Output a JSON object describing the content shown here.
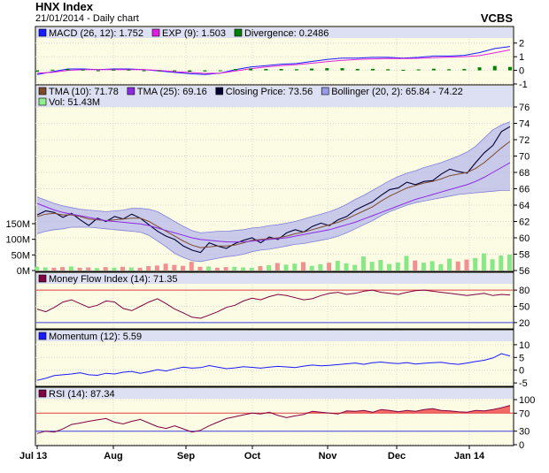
{
  "header": {
    "title": "HNX Index",
    "subtitle": "21/01/2014 - Daily chart",
    "source": "VCBS"
  },
  "chart_data": {
    "type": "line",
    "x_ticks": [
      "Jul 13",
      "Aug",
      "Sep",
      "Oct",
      "Nov",
      "Dec",
      "Jan 14"
    ],
    "panels": [
      {
        "id": "macd",
        "legend": [
          {
            "label": "MACD (26, 12): 1.752",
            "color": "#1a1aff"
          },
          {
            "label": "EXP (9): 1.503",
            "color": "#e020e0"
          },
          {
            "label": "Divergence: 0.2486",
            "color": "#008000"
          }
        ],
        "ylim": [
          -1,
          2.5
        ],
        "y_ticks": [
          "2",
          "1",
          "0",
          "-1"
        ],
        "series": [
          {
            "name": "MACD",
            "color": "#1a1aff",
            "values": [
              -0.3,
              -0.1,
              0.1,
              0.1,
              0.05,
              0.1,
              0.1,
              0.05,
              -0.05,
              -0.15,
              -0.25,
              -0.3,
              -0.2,
              0.05,
              0.25,
              0.35,
              0.45,
              0.5,
              0.65,
              0.8,
              0.9,
              0.9,
              0.95,
              0.95,
              0.9,
              0.95,
              1.05,
              1.05,
              1.1,
              1.3,
              1.6,
              1.75
            ]
          },
          {
            "name": "EXP",
            "color": "#e020e0",
            "values": [
              -0.2,
              -0.15,
              0.0,
              0.05,
              0.05,
              0.05,
              0.05,
              0.05,
              0.0,
              -0.1,
              -0.15,
              -0.22,
              -0.2,
              -0.05,
              0.12,
              0.25,
              0.35,
              0.42,
              0.52,
              0.64,
              0.74,
              0.8,
              0.84,
              0.87,
              0.86,
              0.88,
              0.93,
              0.97,
              1.0,
              1.08,
              1.28,
              1.5
            ]
          },
          {
            "name": "Divergence",
            "color": "#008000",
            "kind": "bars",
            "values": [
              -0.1,
              0.05,
              0.1,
              0.05,
              0.0,
              0.05,
              0.05,
              0.0,
              -0.05,
              -0.05,
              -0.1,
              -0.08,
              0.0,
              0.1,
              0.13,
              0.1,
              0.1,
              0.08,
              0.13,
              0.16,
              0.16,
              0.1,
              0.11,
              0.08,
              0.04,
              0.07,
              0.12,
              0.08,
              0.1,
              0.22,
              0.32,
              0.25
            ]
          }
        ]
      },
      {
        "id": "price",
        "legend": [
          {
            "label": "TMA (10): 71.78",
            "color": "#7b4b2a"
          },
          {
            "label": "TMA (25): 69.16",
            "color": "#8a2be2"
          },
          {
            "label": "Closing Price: 73.56",
            "color": "#000033"
          },
          {
            "label": "Bollinger (20, 2): 65.84 - 74.22",
            "color": "#9a9ae8"
          },
          {
            "label": "Vol: 51.43M",
            "color": "#90ee90"
          }
        ],
        "ylim": [
          56,
          76
        ],
        "y_ticks": [
          "76",
          "74",
          "72",
          "70",
          "68",
          "66",
          "64",
          "62",
          "60",
          "58",
          "56"
        ],
        "volume_ticks": [
          "150M",
          "100M",
          "50M",
          "0M"
        ],
        "volume_max": 150,
        "series": [
          {
            "name": "Closing Price",
            "color": "#000033",
            "values": [
              62.8,
              63.3,
              63.1,
              62.5,
              63.0,
              62.2,
              61.5,
              62.4,
              62.0,
              62.6,
              62.3,
              62.9,
              62.4,
              61.6,
              60.8,
              60.2,
              59.8,
              59.0,
              58.5,
              58.2,
              59.4,
              59.0,
              58.7,
              59.3,
              59.7,
              60.0,
              59.4,
              60.1,
              59.8,
              60.6,
              61.0,
              60.7,
              61.4,
              61.8,
              61.5,
              62.2,
              62.6,
              63.4,
              63.9,
              64.4,
              65.2,
              65.9,
              66.1,
              66.8,
              66.5,
              66.9,
              67.0,
              67.8,
              68.4,
              68.1,
              67.9,
              69.2,
              70.4,
              71.3,
              73.0,
              73.6
            ]
          },
          {
            "name": "TMA (10)",
            "color": "#7b4b2a",
            "values": [
              62.6,
              62.9,
              63.0,
              62.8,
              62.8,
              62.6,
              62.3,
              62.2,
              62.1,
              62.2,
              62.3,
              62.4,
              62.4,
              62.0,
              61.4,
              60.8,
              60.2,
              59.6,
              59.1,
              58.8,
              58.9,
              59.0,
              59.0,
              59.1,
              59.4,
              59.7,
              59.8,
              59.9,
              60.0,
              60.2,
              60.5,
              60.7,
              61.0,
              61.3,
              61.6,
              61.9,
              62.3,
              62.8,
              63.3,
              63.8,
              64.5,
              65.1,
              65.6,
              66.1,
              66.4,
              66.7,
              66.9,
              67.2,
              67.6,
              67.8,
              68.0,
              68.5,
              69.2,
              70.1,
              71.0,
              71.8
            ]
          },
          {
            "name": "TMA (25)",
            "color": "#8a2be2",
            "values": [
              64.2,
              63.8,
              63.4,
              63.1,
              62.9,
              62.7,
              62.5,
              62.3,
              62.1,
              62.0,
              61.9,
              61.8,
              61.7,
              61.5,
              61.2,
              60.9,
              60.6,
              60.3,
              60.0,
              59.8,
              59.7,
              59.6,
              59.5,
              59.5,
              59.5,
              59.6,
              59.7,
              59.8,
              59.9,
              60.0,
              60.2,
              60.4,
              60.6,
              60.8,
              61.0,
              61.3,
              61.6,
              61.9,
              62.3,
              62.7,
              63.1,
              63.5,
              63.9,
              64.3,
              64.7,
              65.0,
              65.3,
              65.6,
              65.9,
              66.2,
              66.5,
              66.9,
              67.4,
              68.0,
              68.6,
              69.2
            ]
          },
          {
            "name": "Bollinger Upper",
            "color": "#9a9ae8",
            "values": [
              65.0,
              64.6,
              64.2,
              63.9,
              63.7,
              63.5,
              63.4,
              63.3,
              63.2,
              63.3,
              63.4,
              63.6,
              63.6,
              63.5,
              63.2,
              62.6,
              62.0,
              61.4,
              60.9,
              60.6,
              60.7,
              60.8,
              60.8,
              60.9,
              61.0,
              61.2,
              61.3,
              61.5,
              61.6,
              61.8,
              62.0,
              62.3,
              62.6,
              62.9,
              63.2,
              63.6,
              64.1,
              64.7,
              65.2,
              65.8,
              66.4,
              67.0,
              67.5,
              67.9,
              68.2,
              68.6,
              68.9,
              69.2,
              69.6,
              70.0,
              70.5,
              71.2,
              72.2,
              73.2,
              73.8,
              74.2
            ]
          },
          {
            "name": "Bollinger Lower",
            "color": "#9a9ae8",
            "values": [
              60.5,
              60.8,
              61.0,
              61.1,
              61.3,
              61.3,
              61.3,
              61.2,
              61.1,
              61.0,
              60.9,
              60.8,
              60.7,
              60.3,
              59.6,
              58.9,
              58.1,
              57.6,
              57.2,
              57.1,
              57.3,
              57.5,
              57.7,
              57.8,
              58.0,
              58.3,
              58.5,
              58.6,
              58.8,
              59.0,
              59.2,
              59.3,
              59.5,
              59.7,
              59.9,
              60.2,
              60.6,
              61.1,
              61.6,
              62.1,
              62.7,
              63.2,
              63.6,
              64.0,
              64.3,
              64.5,
              64.7,
              64.9,
              65.1,
              65.3,
              65.4,
              65.5,
              65.6,
              65.7,
              65.8,
              65.8
            ]
          }
        ],
        "volume": [
          12,
          10,
          9,
          11,
          13,
          9,
          10,
          8,
          11,
          9,
          12,
          10,
          9,
          14,
          16,
          22,
          18,
          15,
          28,
          12,
          13,
          9,
          11,
          12,
          10,
          9,
          14,
          17,
          24,
          19,
          22,
          27,
          15,
          20,
          25,
          31,
          23,
          18,
          45,
          28,
          34,
          21,
          26,
          47,
          32,
          25,
          30,
          20,
          38,
          29,
          35,
          40,
          55,
          36,
          48,
          51
        ]
      },
      {
        "id": "mfi",
        "legend": [
          {
            "label": "Money Flow Index (14): 71.35",
            "color": "#800040"
          }
        ],
        "ylim": [
          10,
          90
        ],
        "y_ticks": [
          "80",
          "50",
          "20"
        ],
        "levels": [
          80,
          20
        ],
        "series": [
          {
            "name": "MFI",
            "color": "#800040",
            "values": [
              45,
              40,
              48,
              58,
              62,
              55,
              48,
              52,
              60,
              58,
              46,
              42,
              50,
              58,
              64,
              55,
              45,
              38,
              30,
              28,
              34,
              40,
              48,
              52,
              60,
              65,
              62,
              68,
              72,
              70,
              66,
              62,
              64,
              70,
              74,
              76,
              72,
              74,
              78,
              80,
              76,
              74,
              72,
              76,
              79,
              80,
              78,
              76,
              74,
              72,
              70,
              72,
              74,
              70,
              72,
              71
            ]
          }
        ]
      },
      {
        "id": "momentum",
        "legend": [
          {
            "label": "Momentum (12): 5.59",
            "color": "#1a1aff"
          }
        ],
        "ylim": [
          -6,
          11
        ],
        "y_ticks": [
          "10",
          "5",
          "0",
          "-5"
        ],
        "series": [
          {
            "name": "Momentum",
            "color": "#1a1aff",
            "values": [
              -4.0,
              -3.2,
              -2.1,
              -1.8,
              -1.5,
              -1.0,
              -1.8,
              -2.0,
              -1.2,
              -1.5,
              -0.8,
              -0.5,
              -1.2,
              -0.6,
              0.2,
              -0.3,
              0.5,
              1.2,
              0.8,
              1.0,
              1.8,
              1.2,
              0.6,
              0.9,
              1.4,
              1.1,
              0.8,
              1.2,
              1.5,
              1.3,
              1.0,
              1.6,
              2.0,
              1.7,
              1.9,
              2.2,
              2.5,
              2.8,
              2.3,
              2.9,
              3.2,
              2.8,
              2.6,
              3.0,
              2.4,
              2.7,
              2.9,
              3.1,
              2.6,
              2.3,
              2.8,
              3.4,
              3.9,
              4.8,
              6.5,
              5.6
            ]
          }
        ]
      },
      {
        "id": "rsi",
        "legend": [
          {
            "label": "RSI (14): 87.34",
            "color": "#800040"
          }
        ],
        "ylim": [
          0,
          100
        ],
        "y_ticks": [
          "100",
          "70",
          "30",
          "0"
        ],
        "levels": [
          70,
          30
        ],
        "series": [
          {
            "name": "RSI",
            "color": "#800040",
            "values": [
              25,
              30,
              28,
              35,
              45,
              48,
              52,
              55,
              58,
              50,
              46,
              52,
              56,
              48,
              40,
              36,
              42,
              35,
              28,
              32,
              42,
              50,
              58,
              62,
              66,
              70,
              68,
              72,
              65,
              60,
              64,
              67,
              74,
              72,
              70,
              68,
              75,
              74,
              76,
              72,
              78,
              76,
              73,
              76,
              74,
              78,
              80,
              76,
              75,
              73,
              72,
              76,
              75,
              78,
              82,
              87
            ]
          }
        ]
      }
    ]
  }
}
